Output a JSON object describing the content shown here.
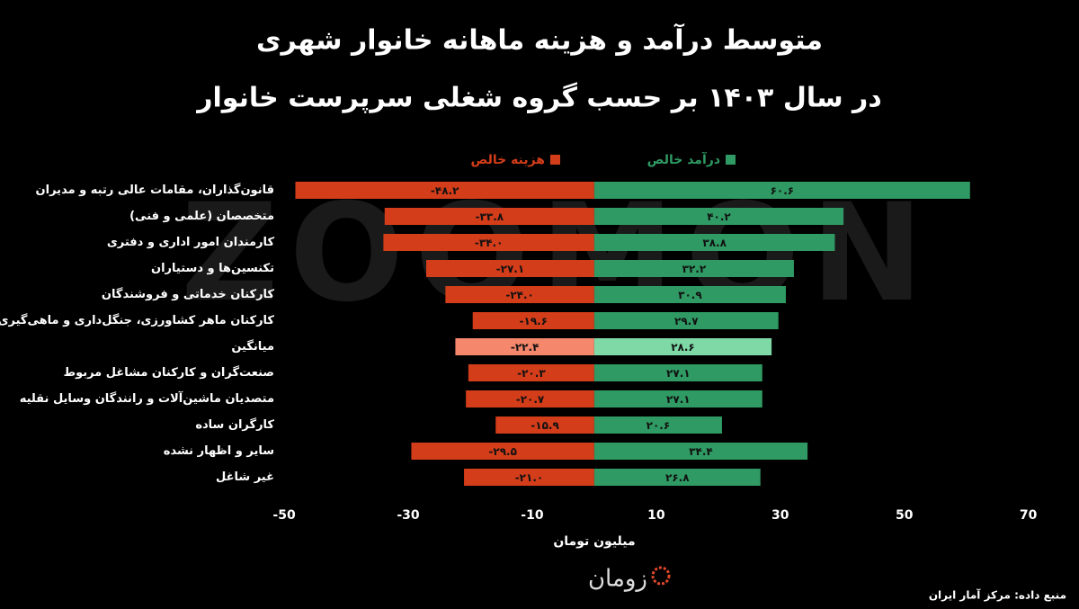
{
  "chart_data": {
    "type": "diverging-bar",
    "title": [
      "متوسط درآمد و هزینه ماهانه خانوار شهری",
      "در سال ۱۴۰۳ بر حسب گروه شغلی سرپرست خانوار"
    ],
    "categories": [
      "قانون‌گذاران، مقامات عالی رتبه و مدیران",
      "متخصصان (علمی و فنی)",
      "کارمندان امور اداری و دفتری",
      "تکنسین‌ها و دستیاران",
      "کارکنان خدماتی و فروشندگان",
      "کارکنان ماهر کشاورزی، جنگل‌داری و ماهی‌گیری",
      "میانگین",
      "صنعت‌گران و کارکنان  مشاغل مربوط",
      "متصدیان ماشین‌آلات و رانندگان وسایل نقلیه",
      "کارگران ساده",
      "سایر و اظهار نشده",
      "غیر شاغل"
    ],
    "series": [
      {
        "name": "هزینه خالص",
        "color": "#d43d1a",
        "colors": [
          "#d43d1a",
          "#d43d1a",
          "#d43d1a",
          "#d43d1a",
          "#d43d1a",
          "#d43d1a",
          "#f4876c",
          "#d43d1a",
          "#d43d1a",
          "#d43d1a",
          "#d43d1a",
          "#d43d1a"
        ],
        "values": [
          -48.2,
          -33.8,
          -34.0,
          -27.1,
          -24.0,
          -19.6,
          -22.4,
          -20.3,
          -20.7,
          -15.9,
          -29.5,
          -21.0
        ],
        "value_labels": [
          "-۴۸.۲",
          "-۳۳.۸",
          "-۳۴.۰",
          "-۲۷.۱",
          "-۲۴.۰",
          "-۱۹.۶",
          "-۲۲.۴",
          "-۲۰.۳",
          "-۲۰.۷",
          "-۱۵.۹",
          "-۲۹.۵",
          "-۲۱.۰"
        ]
      },
      {
        "name": "درآمد خالص",
        "color": "#2f9a63",
        "colors": [
          "#2f9a63",
          "#2f9a63",
          "#2f9a63",
          "#2f9a63",
          "#2f9a63",
          "#2f9a63",
          "#7fd9a6",
          "#2f9a63",
          "#2f9a63",
          "#2f9a63",
          "#2f9a63",
          "#2f9a63"
        ],
        "values": [
          60.6,
          40.2,
          38.8,
          32.2,
          30.9,
          29.7,
          28.6,
          27.1,
          27.1,
          20.6,
          34.4,
          26.8
        ],
        "value_labels": [
          "۶۰.۶",
          "۴۰.۲",
          "۳۸.۸",
          "۳۲.۲",
          "۳۰.۹",
          "۲۹.۷",
          "۲۸.۶",
          "۲۷.۱",
          "۲۷.۱",
          "۲۰.۶",
          "۳۴.۴",
          "۲۶.۸"
        ]
      }
    ],
    "xlim": [
      -50.3,
      70.2
    ],
    "xticks": [
      -50,
      -30,
      -10,
      10,
      30,
      50,
      70
    ],
    "xlabel": "میلیون تومان",
    "watermark": "ZOOMON",
    "logo": "زومان",
    "source": "منبع داده:  مرکز آمار ایران"
  }
}
